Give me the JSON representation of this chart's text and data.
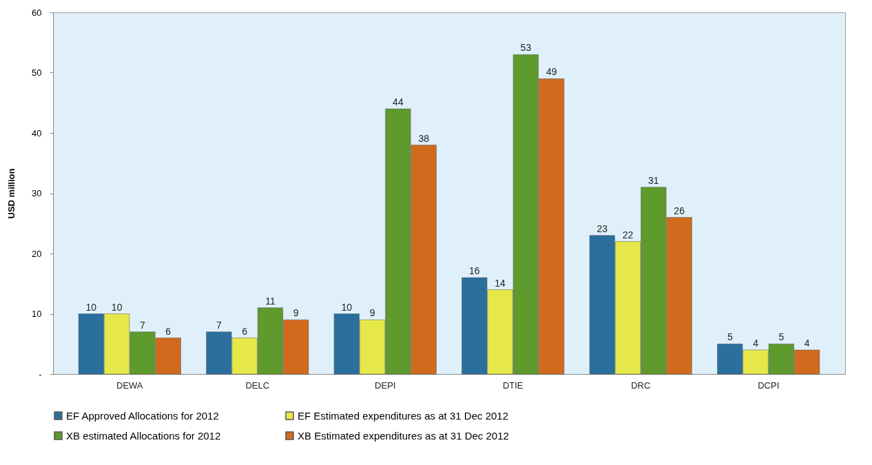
{
  "chart_data": {
    "type": "bar",
    "ylabel": "USD million",
    "categories": [
      "DEWA",
      "DELC",
      "DEPI",
      "DTIE",
      "DRC",
      "DCPI"
    ],
    "series": [
      {
        "name": "EF Approved Allocations for 2012",
        "color": "#2a6f9e",
        "values": [
          10,
          7,
          10,
          16,
          23,
          5
        ]
      },
      {
        "name": "EF Estimated expenditures as at 31 Dec  2012",
        "color": "#e6e84a",
        "values": [
          10,
          6,
          9,
          14,
          22,
          4
        ]
      },
      {
        "name": "XB estimated Allocations for 2012",
        "color": "#5e9a2c",
        "values": [
          7,
          11,
          44,
          53,
          31,
          5
        ]
      },
      {
        "name": "XB Estimated  expenditures as at 31 Dec 2012",
        "color": "#d26a1e",
        "values": [
          6,
          9,
          38,
          49,
          26,
          4
        ]
      }
    ],
    "ylim": [
      0,
      60
    ],
    "yticks": [
      {
        "value": 0,
        "label": "-"
      },
      10,
      20,
      30,
      40,
      50,
      60
    ],
    "data_labels": true,
    "grid": false,
    "legend": "bottom"
  }
}
